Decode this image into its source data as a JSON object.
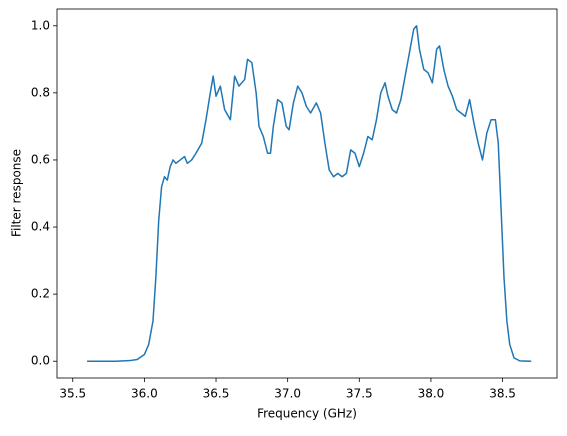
{
  "chart_data": {
    "type": "line",
    "xlabel": "Frequency (GHz)",
    "ylabel": "Filter response",
    "x": [
      35.6,
      35.8,
      35.9,
      35.95,
      36.0,
      36.03,
      36.06,
      36.08,
      36.1,
      36.12,
      36.14,
      36.16,
      36.18,
      36.2,
      36.22,
      36.25,
      36.28,
      36.3,
      36.33,
      36.36,
      36.4,
      36.43,
      36.46,
      36.48,
      36.5,
      36.53,
      36.56,
      36.6,
      36.63,
      36.66,
      36.7,
      36.72,
      36.75,
      36.78,
      36.8,
      36.83,
      36.86,
      36.88,
      36.9,
      36.93,
      36.96,
      36.99,
      37.01,
      37.04,
      37.07,
      37.1,
      37.13,
      37.16,
      37.2,
      37.23,
      37.26,
      37.29,
      37.32,
      37.35,
      37.38,
      37.41,
      37.44,
      37.47,
      37.5,
      37.53,
      37.56,
      37.59,
      37.62,
      37.65,
      37.68,
      37.7,
      37.73,
      37.76,
      37.79,
      37.82,
      37.85,
      37.88,
      37.9,
      37.92,
      37.95,
      37.98,
      38.01,
      38.04,
      38.06,
      38.09,
      38.12,
      38.15,
      38.18,
      38.21,
      38.24,
      38.27,
      38.3,
      38.33,
      38.36,
      38.39,
      38.42,
      38.45,
      38.47,
      38.49,
      38.51,
      38.53,
      38.55,
      38.58,
      38.62,
      38.7
    ],
    "series": [
      {
        "color": "#1f77b4",
        "values": [
          0,
          0,
          0.002,
          0.005,
          0.02,
          0.05,
          0.12,
          0.25,
          0.42,
          0.52,
          0.55,
          0.54,
          0.58,
          0.6,
          0.59,
          0.6,
          0.61,
          0.59,
          0.6,
          0.62,
          0.65,
          0.72,
          0.8,
          0.85,
          0.79,
          0.82,
          0.75,
          0.72,
          0.85,
          0.82,
          0.84,
          0.9,
          0.89,
          0.8,
          0.7,
          0.67,
          0.62,
          0.62,
          0.7,
          0.78,
          0.77,
          0.7,
          0.69,
          0.77,
          0.82,
          0.8,
          0.76,
          0.74,
          0.77,
          0.74,
          0.65,
          0.57,
          0.55,
          0.56,
          0.55,
          0.56,
          0.63,
          0.62,
          0.58,
          0.62,
          0.67,
          0.66,
          0.72,
          0.8,
          0.83,
          0.79,
          0.75,
          0.74,
          0.78,
          0.85,
          0.92,
          0.99,
          1.0,
          0.93,
          0.87,
          0.86,
          0.83,
          0.93,
          0.94,
          0.87,
          0.82,
          0.79,
          0.75,
          0.74,
          0.73,
          0.78,
          0.71,
          0.65,
          0.6,
          0.68,
          0.72,
          0.72,
          0.65,
          0.45,
          0.25,
          0.12,
          0.05,
          0.01,
          0.001,
          0
        ]
      }
    ],
    "xlim": [
      35.39,
      38.88
    ],
    "ylim": [
      -0.05,
      1.05
    ],
    "xticks": [
      35.5,
      {
        "value": 36.0,
        "label": "36.0"
      },
      36.5,
      {
        "value": 37.0,
        "label": "37.0"
      },
      37.5,
      {
        "value": 38.0,
        "label": "38.0"
      },
      38.5
    ],
    "yticks": [
      {
        "value": 0.0,
        "label": "0.0"
      },
      0.2,
      0.4,
      0.6,
      0.8,
      {
        "value": 1.0,
        "label": "1.0"
      }
    ]
  }
}
